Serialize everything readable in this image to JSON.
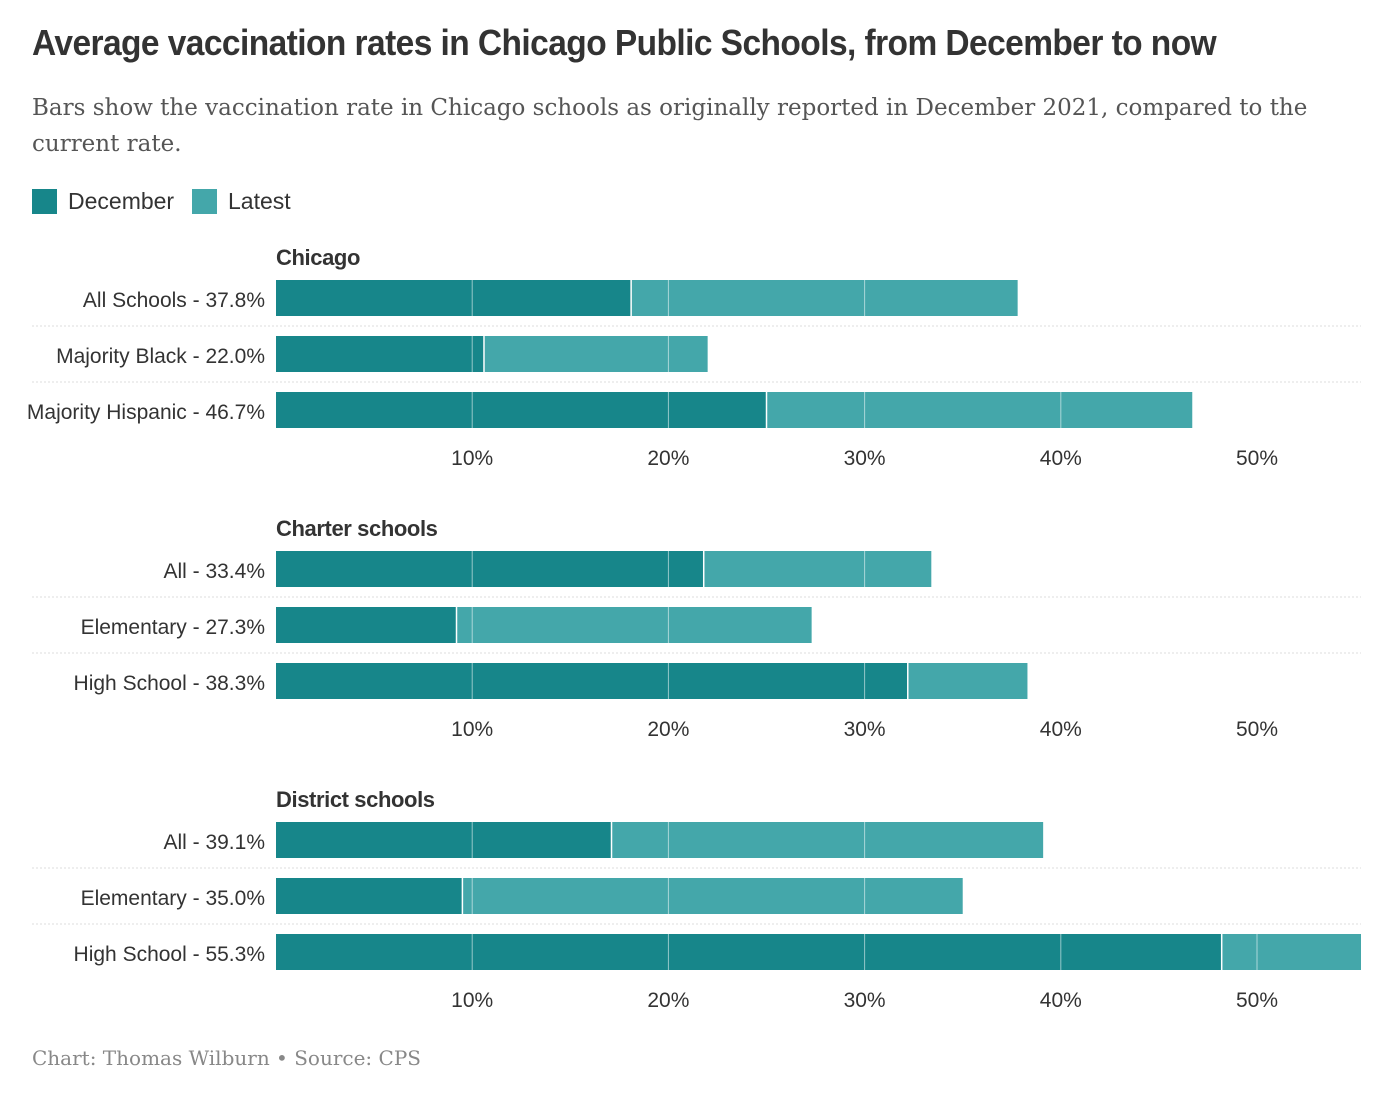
{
  "title": "Average vaccination rates in Chicago Public Schools, from December to now",
  "subtitle": "Bars show the vaccination rate in Chicago schools as originally reported in December 2021, compared to the current rate.",
  "colors": {
    "december": "#17868a",
    "latest": "#44a7aa",
    "text": "#333333",
    "separator": "#dddddd",
    "grid": "#ffffff"
  },
  "legend": [
    {
      "label": "December",
      "color": "#17868a"
    },
    {
      "label": "Latest",
      "color": "#44a7aa"
    }
  ],
  "footer": "Chart: Thomas Wilburn • Source: CPS",
  "chart_data": {
    "type": "bar",
    "orientation": "horizontal",
    "stacked_overlay": true,
    "series": [
      {
        "name": "December"
      },
      {
        "name": "Latest"
      }
    ],
    "xlim": [
      0,
      55.3
    ],
    "ticks": [
      10,
      20,
      30,
      40,
      50
    ],
    "tick_labels": [
      "10%",
      "20%",
      "30%",
      "40%",
      "50%"
    ],
    "grid": true,
    "legend_position": "top-left",
    "panels": [
      {
        "title": "Chicago",
        "rows": [
          {
            "label": "All Schools - 37.8%",
            "december": 18.1,
            "latest": 37.8
          },
          {
            "label": "Majority Black - 22.0%",
            "december": 10.6,
            "latest": 22.0
          },
          {
            "label": "Majority Hispanic - 46.7%",
            "december": 25.0,
            "latest": 46.7
          }
        ]
      },
      {
        "title": "Charter schools",
        "rows": [
          {
            "label": "All - 33.4%",
            "december": 21.8,
            "latest": 33.4
          },
          {
            "label": "Elementary - 27.3%",
            "december": 9.2,
            "latest": 27.3
          },
          {
            "label": "High School - 38.3%",
            "december": 32.2,
            "latest": 38.3
          }
        ]
      },
      {
        "title": "District schools",
        "rows": [
          {
            "label": "All - 39.1%",
            "december": 17.1,
            "latest": 39.1
          },
          {
            "label": "Elementary - 35.0%",
            "december": 9.5,
            "latest": 35.0
          },
          {
            "label": "High School - 55.3%",
            "december": 48.2,
            "latest": 55.3
          }
        ]
      }
    ]
  }
}
